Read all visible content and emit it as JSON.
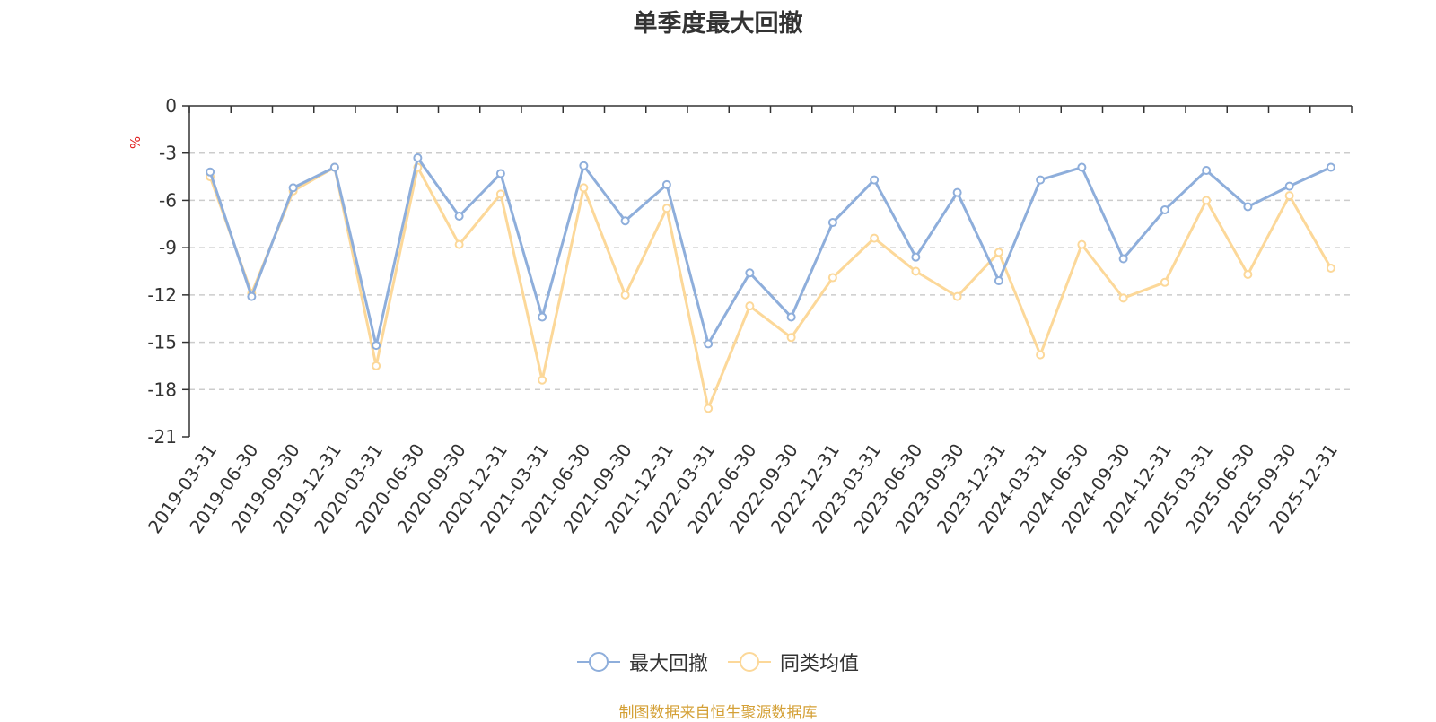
{
  "chart_data": {
    "type": "line",
    "title": "单季度最大回撤",
    "ylabel": "%",
    "ylim": [
      -21,
      0
    ],
    "yticks": [
      "0",
      "-3",
      "-6",
      "-9",
      "-12",
      "-15",
      "-18",
      "-21"
    ],
    "categories": [
      "2019-03-31",
      "2019-06-30",
      "2019-09-30",
      "2019-12-31",
      "2020-03-31",
      "2020-06-30",
      "2020-09-30",
      "2020-12-31",
      "2021-03-31",
      "2021-06-30",
      "2021-09-30",
      "2021-12-31",
      "2022-03-31",
      "2022-06-30",
      "2022-09-30",
      "2022-12-31",
      "2023-03-31",
      "2023-06-30",
      "2023-09-30",
      "2023-12-31",
      "2024-03-31",
      "2024-06-30",
      "2024-09-30",
      "2024-12-31",
      "2025-03-31",
      "2025-06-30",
      "2025-09-30",
      "2025-12-31"
    ],
    "series": [
      {
        "name": "最大回撤",
        "color": "#8eaedb",
        "values": [
          -4.2,
          -12.1,
          -5.2,
          -3.9,
          -15.2,
          -3.3,
          -7.0,
          -4.3,
          -13.4,
          -3.8,
          -7.3,
          -5.0,
          -15.1,
          -10.6,
          -13.4,
          -7.4,
          -4.7,
          -9.6,
          -5.5,
          -11.1,
          -4.7,
          -3.9,
          -9.7,
          -6.6,
          -4.1,
          -6.4,
          -5.1,
          -3.9
        ]
      },
      {
        "name": "同类均值",
        "color": "#fcd899",
        "values": [
          -4.5,
          -11.9,
          -5.4,
          -3.9,
          -16.5,
          -3.9,
          -8.8,
          -5.6,
          -17.4,
          -5.2,
          -12.0,
          -6.5,
          -19.2,
          -12.7,
          -14.7,
          -10.9,
          -8.4,
          -10.5,
          -12.1,
          -9.3,
          -15.8,
          -8.8,
          -12.2,
          -11.2,
          -6.0,
          -10.7,
          -5.7,
          -10.3
        ]
      }
    ],
    "grid": true,
    "legend_position": "bottom-center"
  },
  "footer": {
    "source": "制图数据来自恒生聚源数据库"
  }
}
